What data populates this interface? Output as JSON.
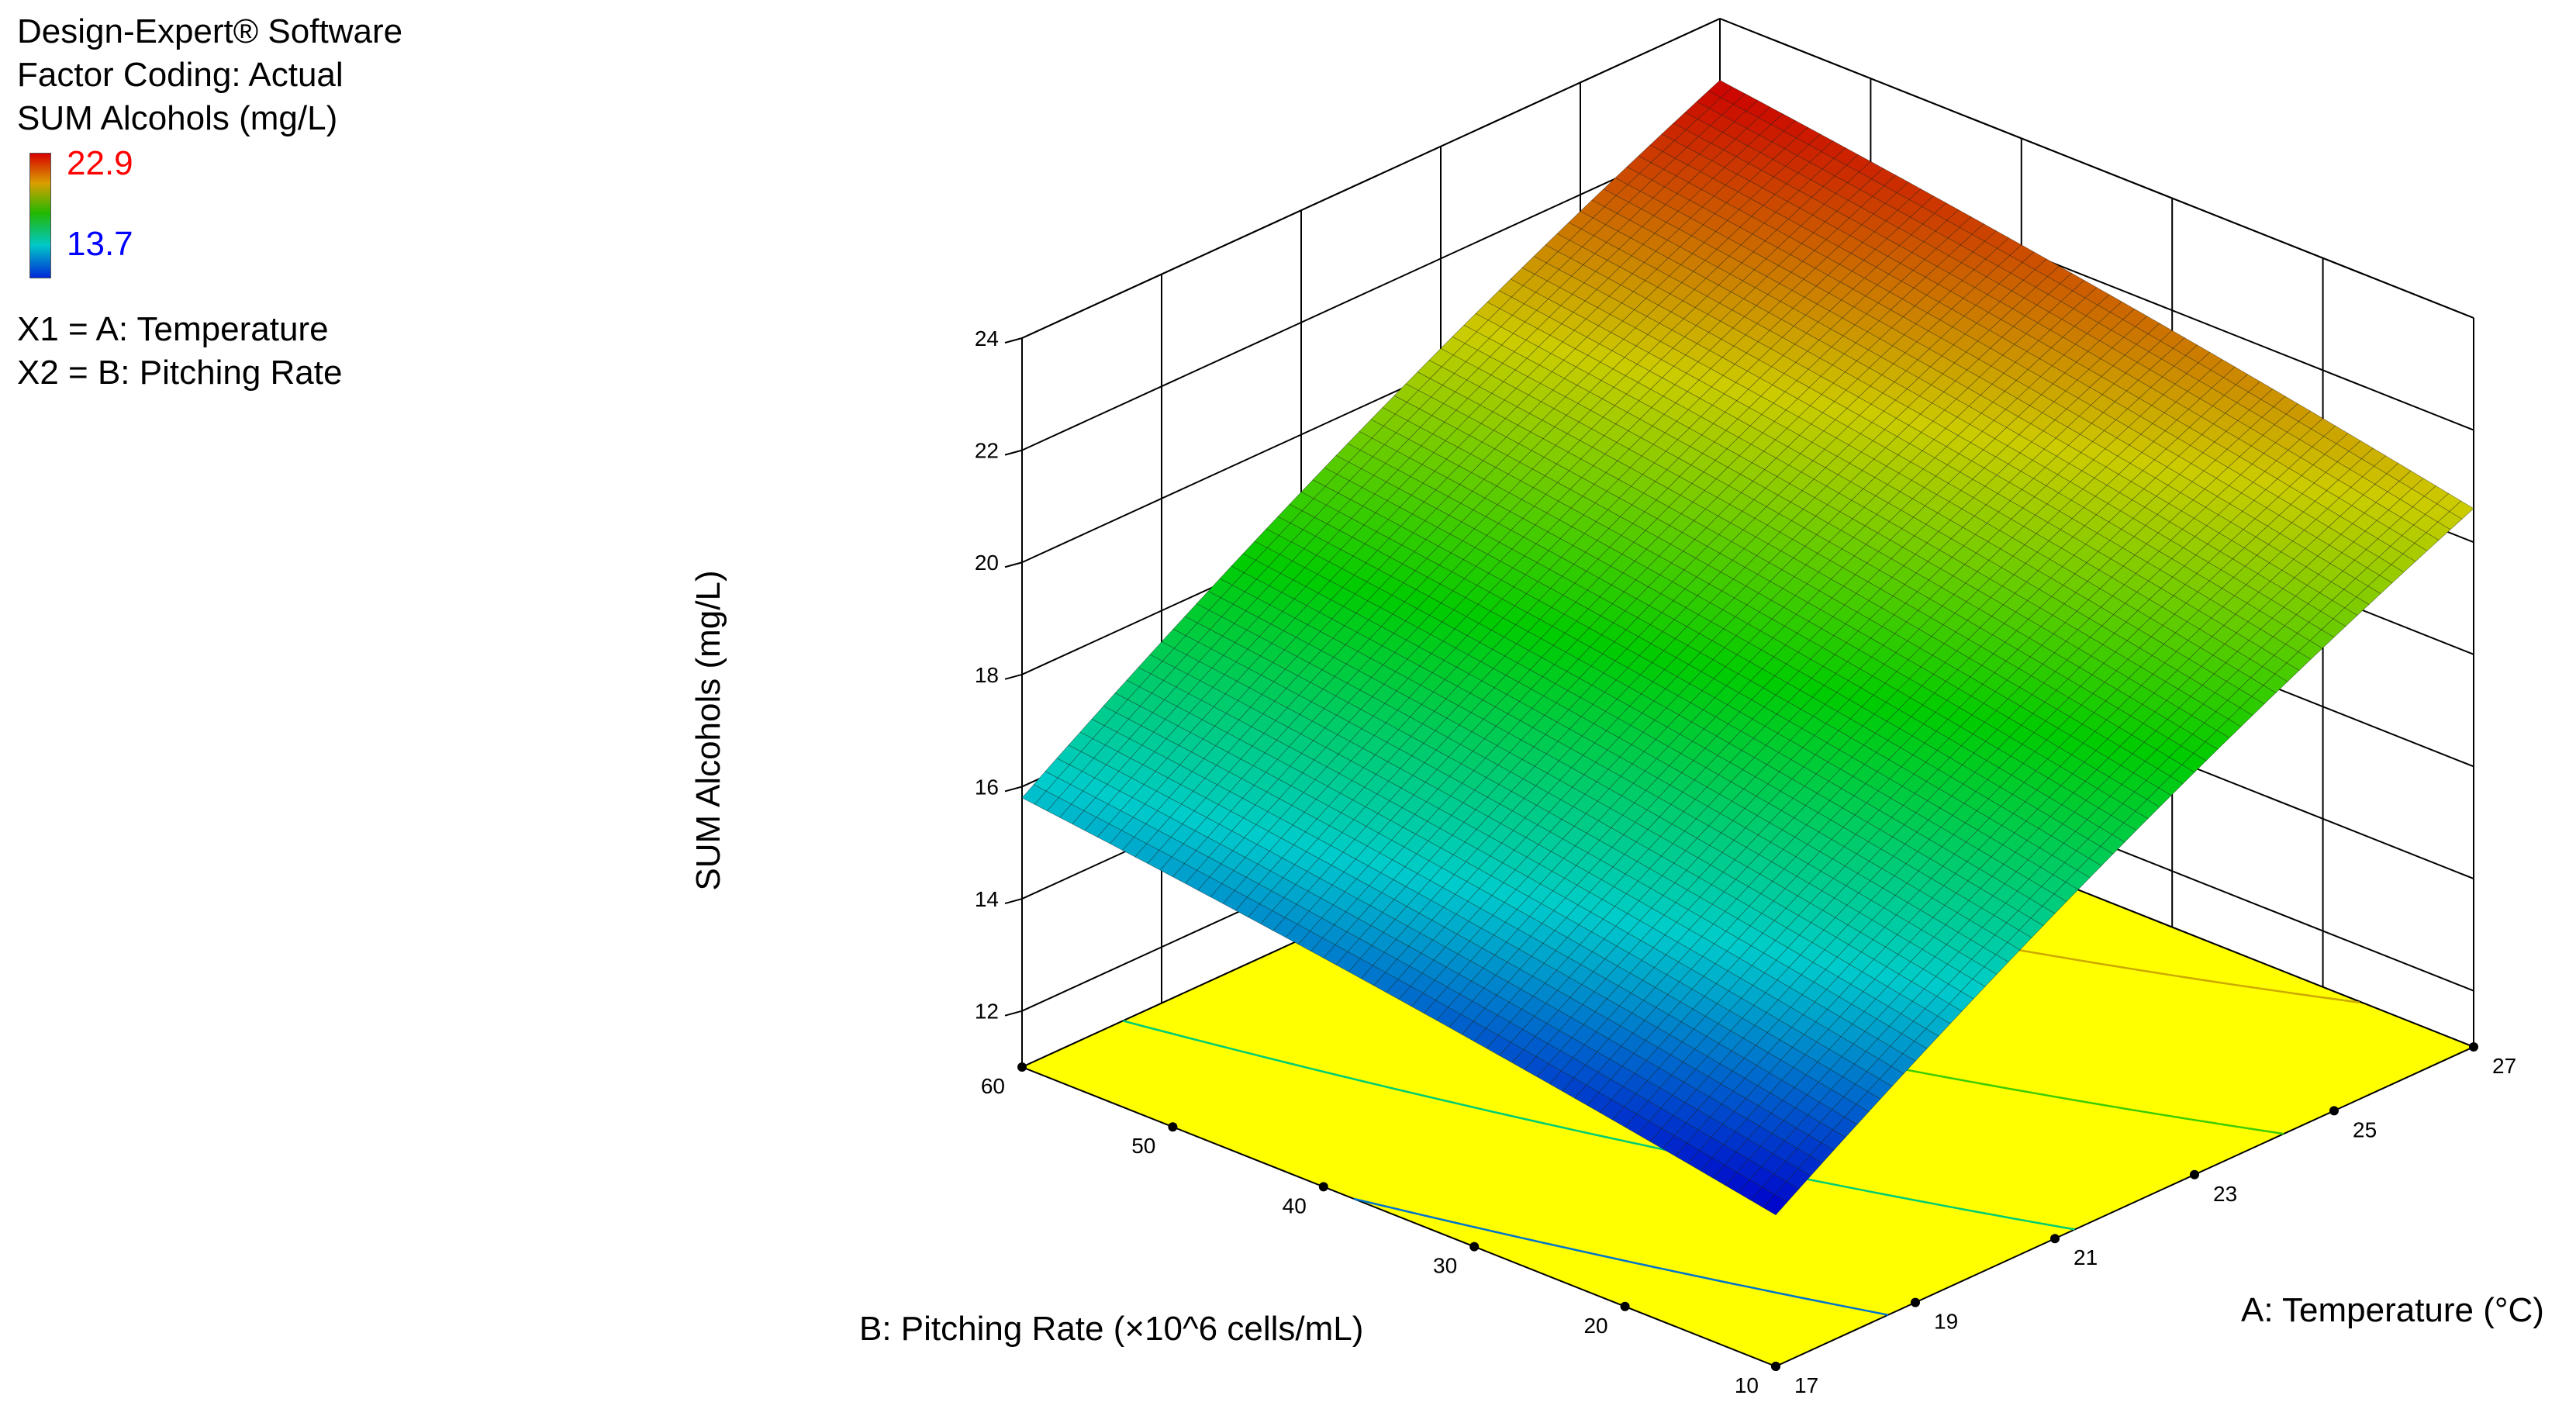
{
  "header": {
    "software": "Design-Expert® Software",
    "coding": "Factor Coding: Actual",
    "response": "SUM Alcohols (mg/L)",
    "legend_high": "22.9",
    "legend_low": "13.7",
    "x1": "X1 = A: Temperature",
    "x2": "X2 = B: Pitching Rate"
  },
  "colors": {
    "high": "#ff0000",
    "low": "#0000ff",
    "floor": "#ffff00"
  },
  "chart_data": {
    "type": "surface",
    "title": "",
    "xlabel": "A: Temperature (°C)",
    "ylabel": "B: Pitching Rate (×10^6 cells/mL)",
    "zlabel": "SUM Alcohols (mg/L)",
    "xlim": [
      17,
      27
    ],
    "ylim": [
      10,
      60
    ],
    "zlim": [
      11,
      24
    ],
    "x_ticks": [
      "17",
      "19",
      "21",
      "23",
      "25",
      "27"
    ],
    "y_ticks": [
      "10",
      "20",
      "30",
      "40",
      "50",
      "60"
    ],
    "z_ticks": [
      "12",
      "14",
      "16",
      "18",
      "20",
      "22",
      "24"
    ],
    "corner_values": [
      {
        "temperature": 17,
        "pitching_rate": 10,
        "sum_alcohols": 13.7
      },
      {
        "temperature": 27,
        "pitching_rate": 10,
        "sum_alcohols": 20.6
      },
      {
        "temperature": 17,
        "pitching_rate": 60,
        "sum_alcohols": 15.8
      },
      {
        "temperature": 27,
        "pitching_rate": 60,
        "sum_alcohols": 22.9
      }
    ],
    "color_range": [
      13.7,
      22.9
    ],
    "grid": true
  }
}
